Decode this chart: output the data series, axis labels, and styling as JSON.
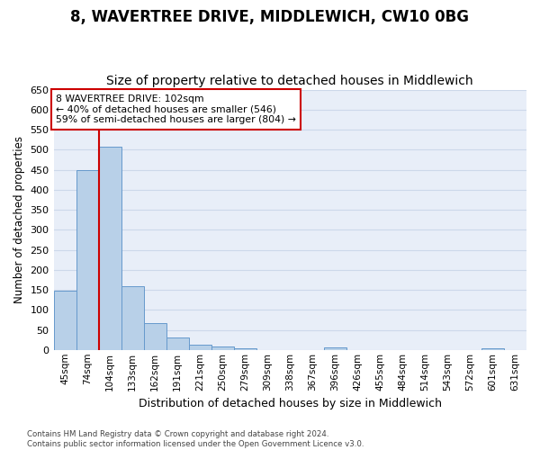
{
  "title": "8, WAVERTREE DRIVE, MIDDLEWICH, CW10 0BG",
  "subtitle": "Size of property relative to detached houses in Middlewich",
  "xlabel": "Distribution of detached houses by size in Middlewich",
  "ylabel": "Number of detached properties",
  "categories": [
    "45sqm",
    "74sqm",
    "104sqm",
    "133sqm",
    "162sqm",
    "191sqm",
    "221sqm",
    "250sqm",
    "279sqm",
    "309sqm",
    "338sqm",
    "367sqm",
    "396sqm",
    "426sqm",
    "455sqm",
    "484sqm",
    "514sqm",
    "543sqm",
    "572sqm",
    "601sqm",
    "631sqm"
  ],
  "values": [
    147,
    449,
    507,
    158,
    68,
    31,
    14,
    9,
    5,
    0,
    0,
    0,
    6,
    0,
    0,
    0,
    0,
    0,
    0,
    5,
    0
  ],
  "bar_color": "#b8d0e8",
  "bar_edge_color": "#6699cc",
  "annotation_text": "8 WAVERTREE DRIVE: 102sqm\n← 40% of detached houses are smaller (546)\n59% of semi-detached houses are larger (804) →",
  "annotation_box_color": "#ffffff",
  "annotation_box_edge_color": "#cc0000",
  "ylim": [
    0,
    650
  ],
  "yticks": [
    0,
    50,
    100,
    150,
    200,
    250,
    300,
    350,
    400,
    450,
    500,
    550,
    600,
    650
  ],
  "grid_color": "#ccd8ea",
  "background_color": "#e8eef8",
  "title_fontsize": 12,
  "subtitle_fontsize": 10,
  "footer_text": "Contains HM Land Registry data © Crown copyright and database right 2024.\nContains public sector information licensed under the Open Government Licence v3.0.",
  "red_line_color": "#cc0000",
  "red_line_x": 1.5
}
